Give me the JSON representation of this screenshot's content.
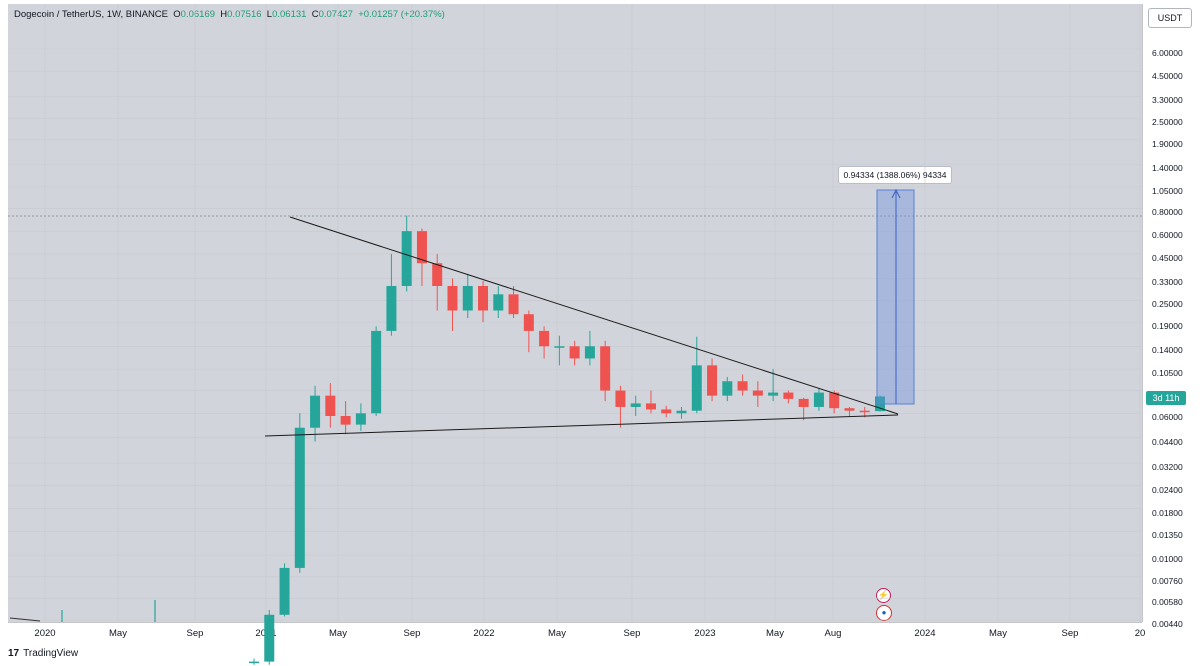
{
  "header": {
    "symbol": "Dogecoin / TetherUS, 1W, BINANCE",
    "open_label": "O",
    "open": "0.06169",
    "high_label": "H",
    "high": "0.07516",
    "low_label": "L",
    "low": "0.06131",
    "close_label": "C",
    "close": "0.07427",
    "change": "+0.01257 (+20.37%)"
  },
  "unit_button": "USDT",
  "price_tag": "3d 11h",
  "measure_label": "0.94334 (1388.06%) 94334",
  "footer": {
    "logo": "17",
    "brand": "TradingView"
  },
  "colors": {
    "up": "#26a69a",
    "down": "#ef5350",
    "background": "#d2d4db",
    "measure": "#6a8fe0"
  },
  "chart_data": {
    "type": "candlestick",
    "scale": "log",
    "y_ticks": [
      "6.00000",
      "4.50000",
      "3.30000",
      "2.50000",
      "1.90000",
      "1.40000",
      "1.05000",
      "0.80000",
      "0.60000",
      "0.45000",
      "0.33000",
      "0.25000",
      "0.19000",
      "0.14000",
      "0.10500",
      "0.08000",
      "0.06000",
      "0.04400",
      "0.03200",
      "0.02400",
      "0.01800",
      "0.01350",
      "0.01000",
      "0.00760",
      "0.00580",
      "0.00440"
    ],
    "x_ticks": [
      "2020",
      "May",
      "Sep",
      "2021",
      "May",
      "Sep",
      "2022",
      "May",
      "Sep",
      "2023",
      "May",
      "Aug",
      "2024",
      "May",
      "Sep",
      "20"
    ],
    "candles": [
      [
        "2020-10",
        0.0026,
        0.0027,
        0.0025,
        0.0026
      ],
      [
        "2020-12",
        0.0026,
        0.005,
        0.0025,
        0.0047
      ],
      [
        "2021-01a",
        0.0047,
        0.009,
        0.0046,
        0.0085
      ],
      [
        "2021-01b",
        0.0085,
        0.06,
        0.008,
        0.05
      ],
      [
        "2021-02a",
        0.05,
        0.085,
        0.042,
        0.075
      ],
      [
        "2021-02b",
        0.075,
        0.088,
        0.05,
        0.058
      ],
      [
        "2021-03",
        0.058,
        0.07,
        0.046,
        0.052
      ],
      [
        "2021-03b",
        0.052,
        0.068,
        0.048,
        0.06
      ],
      [
        "2021-04a",
        0.06,
        0.18,
        0.058,
        0.17
      ],
      [
        "2021-04b",
        0.17,
        0.45,
        0.16,
        0.3
      ],
      [
        "2021-05a",
        0.3,
        0.73,
        0.28,
        0.6
      ],
      [
        "2021-05b",
        0.6,
        0.62,
        0.3,
        0.4
      ],
      [
        "2021-06",
        0.4,
        0.45,
        0.22,
        0.3
      ],
      [
        "2021-07",
        0.3,
        0.33,
        0.17,
        0.22
      ],
      [
        "2021-08",
        0.22,
        0.35,
        0.2,
        0.3
      ],
      [
        "2021-09",
        0.3,
        0.32,
        0.19,
        0.22
      ],
      [
        "2021-10",
        0.22,
        0.3,
        0.2,
        0.27
      ],
      [
        "2021-11",
        0.27,
        0.3,
        0.2,
        0.21
      ],
      [
        "2021-12",
        0.21,
        0.22,
        0.13,
        0.17
      ],
      [
        "2022-01",
        0.17,
        0.18,
        0.12,
        0.14
      ],
      [
        "2022-02",
        0.14,
        0.16,
        0.11,
        0.14
      ],
      [
        "2022-03",
        0.14,
        0.15,
        0.11,
        0.12
      ],
      [
        "2022-04",
        0.12,
        0.17,
        0.11,
        0.14
      ],
      [
        "2022-05",
        0.14,
        0.15,
        0.07,
        0.08
      ],
      [
        "2022-06",
        0.08,
        0.085,
        0.05,
        0.065
      ],
      [
        "2022-07",
        0.065,
        0.075,
        0.058,
        0.068
      ],
      [
        "2022-08",
        0.068,
        0.08,
        0.06,
        0.063
      ],
      [
        "2022-09",
        0.063,
        0.066,
        0.057,
        0.06
      ],
      [
        "2022-10",
        0.06,
        0.065,
        0.056,
        0.062
      ],
      [
        "2022-11",
        0.062,
        0.158,
        0.06,
        0.11
      ],
      [
        "2022-12",
        0.11,
        0.12,
        0.07,
        0.075
      ],
      [
        "2023-01",
        0.075,
        0.095,
        0.07,
        0.09
      ],
      [
        "2023-02",
        0.09,
        0.098,
        0.075,
        0.08
      ],
      [
        "2023-03",
        0.08,
        0.09,
        0.065,
        0.075
      ],
      [
        "2023-04",
        0.075,
        0.105,
        0.07,
        0.078
      ],
      [
        "2023-05",
        0.078,
        0.08,
        0.068,
        0.072
      ],
      [
        "2023-06",
        0.072,
        0.073,
        0.055,
        0.065
      ],
      [
        "2023-07",
        0.065,
        0.082,
        0.062,
        0.078
      ],
      [
        "2023-08",
        0.078,
        0.08,
        0.06,
        0.064
      ],
      [
        "2023-09",
        0.064,
        0.065,
        0.058,
        0.062
      ],
      [
        "2023-10",
        0.062,
        0.065,
        0.057,
        0.061
      ],
      [
        "2023-11",
        0.06169,
        0.07516,
        0.06131,
        0.07427
      ]
    ]
  }
}
